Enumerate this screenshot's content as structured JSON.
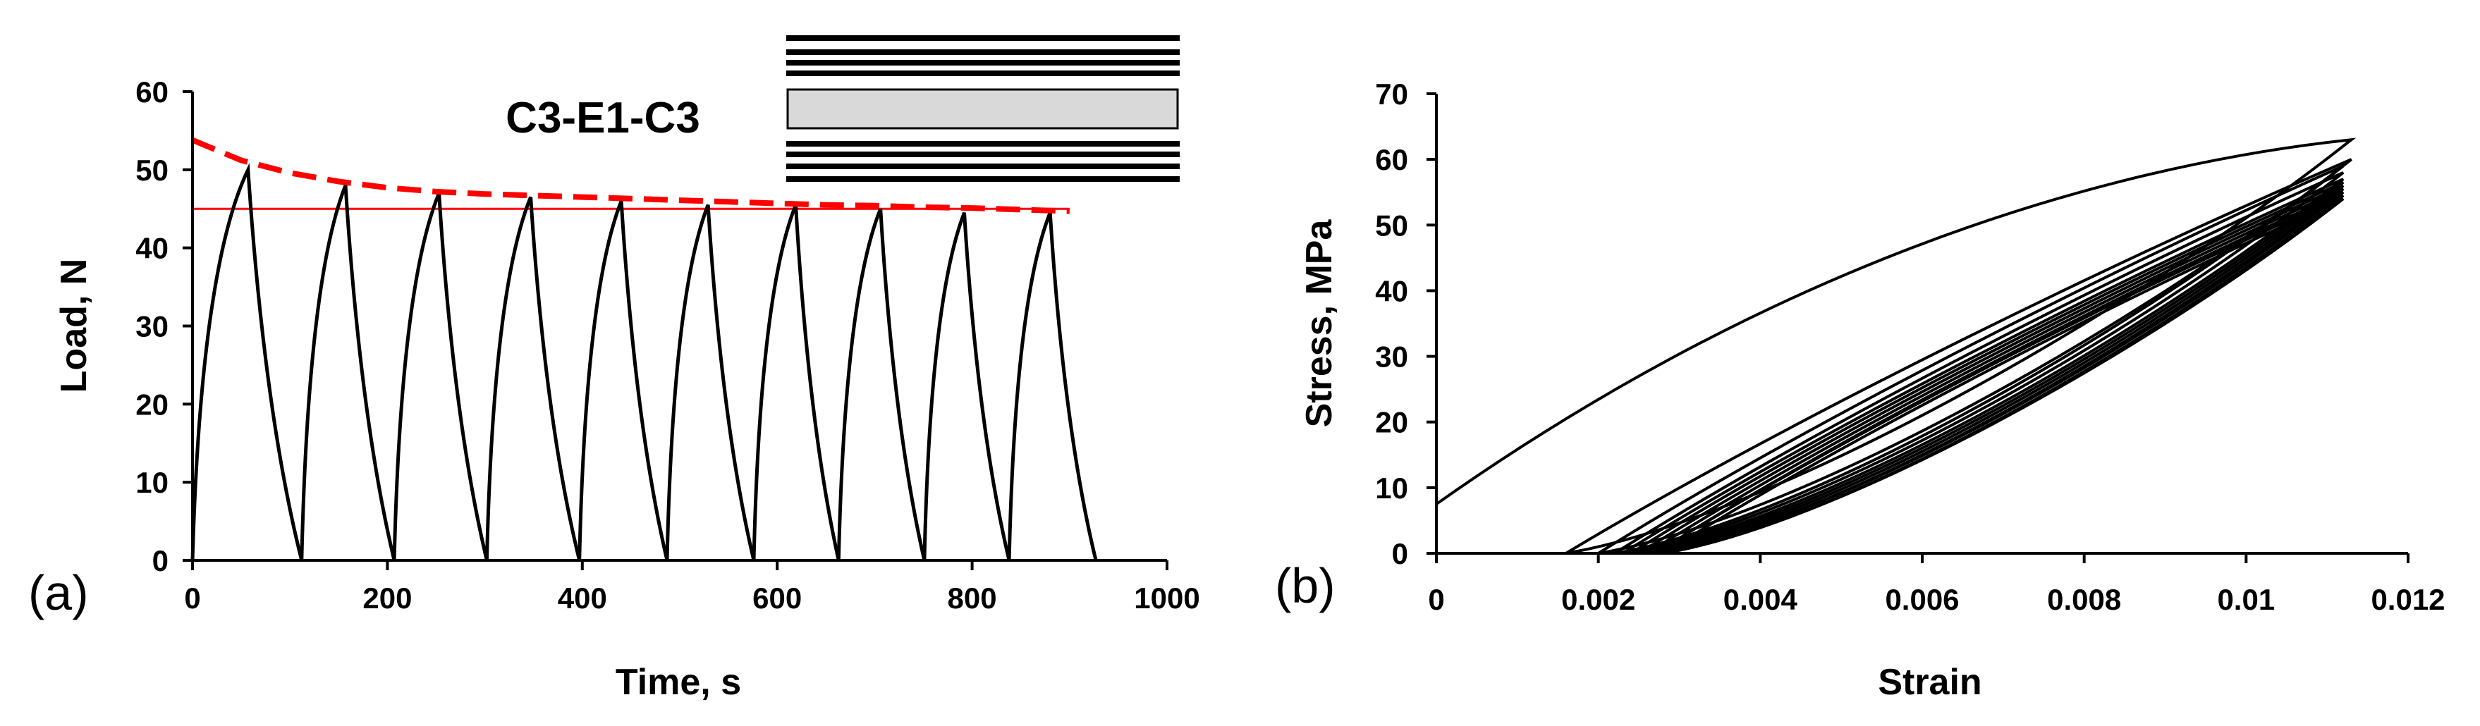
{
  "panels": [
    {
      "label": "(a)"
    },
    {
      "label": "(b)"
    }
  ],
  "chart_data": [
    {
      "type": "line",
      "title": "",
      "xlabel": "Time, s",
      "ylabel": "Load, N",
      "xlim": [
        0,
        1000
      ],
      "ylim": [
        0,
        60
      ],
      "xticks": [
        0,
        200,
        400,
        600,
        800,
        1000
      ],
      "yticks": [
        0,
        10,
        20,
        30,
        40,
        50,
        60
      ],
      "annotation": "C3-E1-C3",
      "grid": false,
      "series": [
        {
          "color": "#000000",
          "style": "solid",
          "peaks": [
            {
              "t": 0,
              "v": 0
            },
            {
              "t": 57,
              "v": 50
            },
            {
              "t": 112,
              "v": 0
            },
            {
              "t": 157,
              "v": 48
            },
            {
              "t": 207,
              "v": 0
            },
            {
              "t": 253,
              "v": 47
            },
            {
              "t": 302,
              "v": 0
            },
            {
              "t": 347,
              "v": 46.5
            },
            {
              "t": 397,
              "v": 0
            },
            {
              "t": 440,
              "v": 46
            },
            {
              "t": 487,
              "v": 0
            },
            {
              "t": 529,
              "v": 45.5
            },
            {
              "t": 576,
              "v": 0
            },
            {
              "t": 619,
              "v": 45.5
            },
            {
              "t": 663,
              "v": 0
            },
            {
              "t": 706,
              "v": 45
            },
            {
              "t": 751,
              "v": 0
            },
            {
              "t": 792,
              "v": 44.5
            },
            {
              "t": 838,
              "v": 0
            },
            {
              "t": 880,
              "v": 44.5
            },
            {
              "t": 927,
              "v": 0
            }
          ]
        },
        {
          "color": "#ff0000",
          "style": "dashed",
          "x": [
            0,
            50,
            100,
            150,
            200,
            250,
            300,
            350,
            400,
            450,
            500,
            550,
            600,
            650,
            700,
            750,
            800,
            850,
            900
          ],
          "y": [
            53.8,
            51.2,
            49.6,
            48.5,
            47.7,
            47.2,
            46.9,
            46.7,
            46.5,
            46.3,
            46.1,
            45.9,
            45.7,
            45.5,
            45.4,
            45.2,
            45.1,
            44.9,
            44.7
          ]
        },
        {
          "color": "#ff0000",
          "style": "solid",
          "x": [
            0,
            900
          ],
          "y": [
            45,
            45
          ]
        }
      ],
      "layup": {
        "outer_layers_top": 4,
        "core": "E1",
        "outer_layers_bottom": 4
      }
    },
    {
      "type": "line",
      "title": "",
      "xlabel": "Strain",
      "ylabel": "Stress, MPa",
      "xlim": [
        0,
        0.012
      ],
      "ylim": [
        0,
        70
      ],
      "xticks": [
        0,
        0.002,
        0.004,
        0.006,
        0.008,
        0.01,
        0.012
      ],
      "xtick_labels": [
        "0",
        "0.002",
        "0.004",
        "0.006",
        "0.008",
        "0.01",
        "0.012"
      ],
      "yticks": [
        0,
        10,
        20,
        30,
        40,
        50,
        60,
        70
      ],
      "grid": false,
      "series": [
        {
          "color": "#000000",
          "loops": [
            {
              "start": [
                0,
                7.5
              ],
              "peak": [
                0.0113,
                63
              ],
              "end": [
                0.0016,
                0
              ]
            },
            {
              "start": [
                0.0016,
                0
              ],
              "peak": [
                0.0113,
                60
              ],
              "end": [
                0.002,
                0
              ]
            },
            {
              "start": [
                0.002,
                0
              ],
              "peak": [
                0.0112,
                59
              ],
              "end": [
                0.0022,
                0
              ]
            },
            {
              "start": [
                0.0022,
                0
              ],
              "peak": [
                0.0112,
                58
              ],
              "end": [
                0.0023,
                0
              ]
            },
            {
              "start": [
                0.0023,
                0
              ],
              "peak": [
                0.0112,
                57
              ],
              "end": [
                0.0024,
                0
              ]
            },
            {
              "start": [
                0.0024,
                0
              ],
              "peak": [
                0.0112,
                56.5
              ],
              "end": [
                0.0025,
                0
              ]
            },
            {
              "start": [
                0.0025,
                0
              ],
              "peak": [
                0.0112,
                56
              ],
              "end": [
                0.0026,
                0
              ]
            },
            {
              "start": [
                0.0026,
                0
              ],
              "peak": [
                0.0112,
                55.5
              ],
              "end": [
                0.0027,
                0
              ]
            },
            {
              "start": [
                0.0027,
                0
              ],
              "peak": [
                0.0112,
                55
              ],
              "end": [
                0.0027,
                0
              ]
            },
            {
              "start": [
                0.0027,
                0
              ],
              "peak": [
                0.0112,
                54.5
              ],
              "end": [
                0.0028,
                0
              ]
            },
            {
              "start": [
                0.0028,
                0
              ],
              "peak": [
                0.0112,
                54
              ],
              "end": [
                0.0028,
                0
              ]
            }
          ]
        }
      ]
    }
  ]
}
